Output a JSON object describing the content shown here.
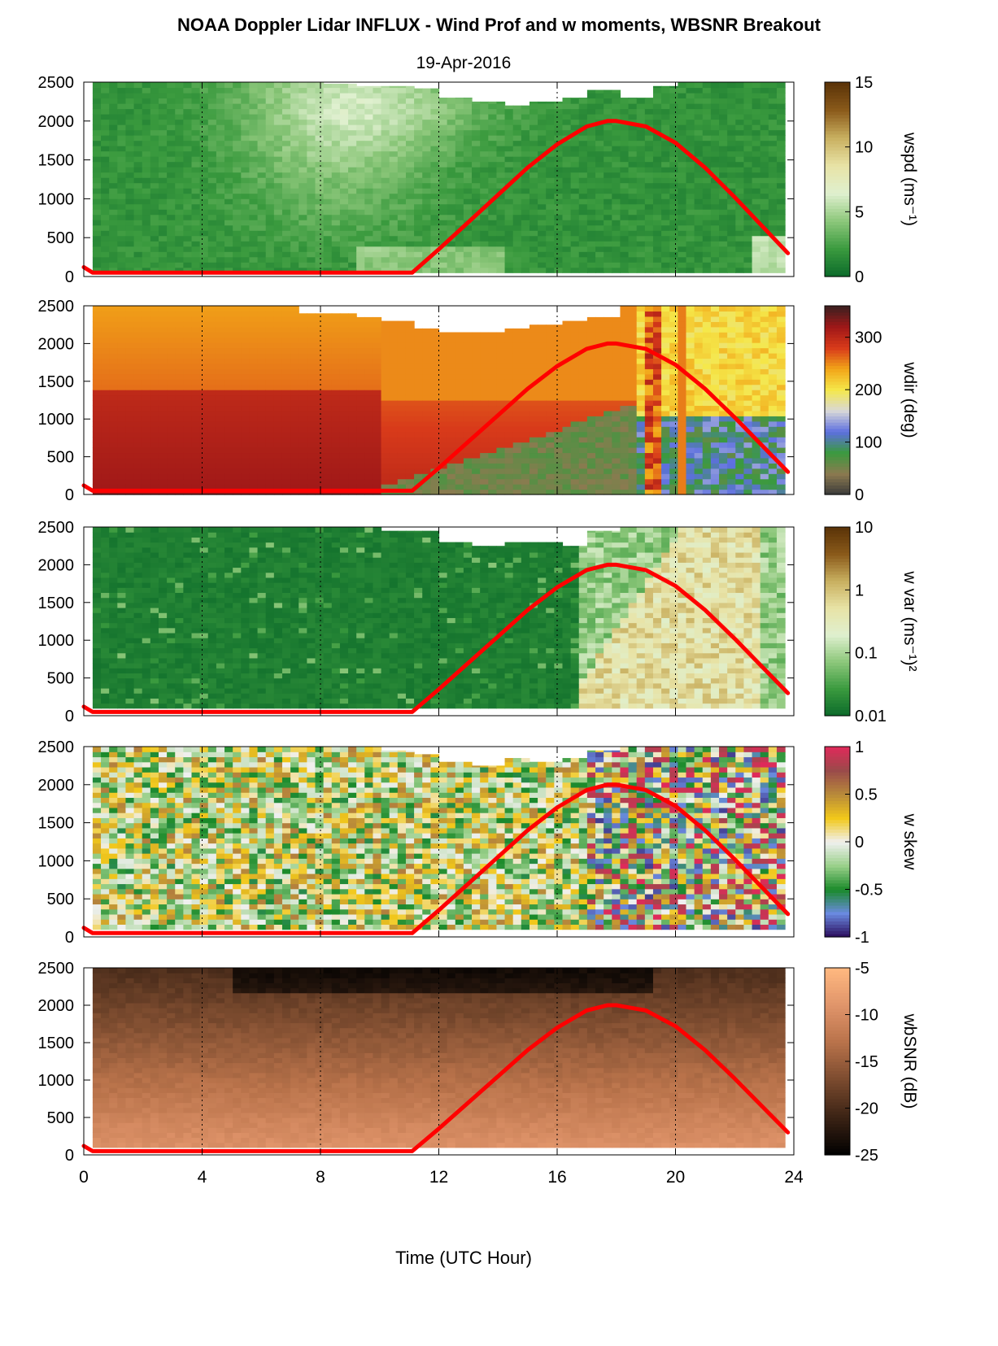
{
  "title": "NOAA Doppler Lidar INFLUX - Wind Prof and w moments, WBSNR Breakout",
  "subtitle": "19-Apr-2016",
  "chart_data": [
    {
      "type": "heatmap",
      "name": "wspd",
      "ylabel": "wspd (ms⁻¹)",
      "ylim": [
        0,
        2500
      ],
      "yticks": [
        "0",
        "500",
        "1000",
        "1500",
        "2000",
        "2500"
      ],
      "xlim": [
        0,
        24
      ],
      "colorbar": {
        "range": [
          0,
          15
        ],
        "ticks": [
          "0",
          "5",
          "10",
          "15"
        ],
        "scale": "linear",
        "colors": [
          "#0b6a2a",
          "#3a9a3e",
          "#8cc77a",
          "#dff0cf",
          "#e8e3a6",
          "#c9b060",
          "#8a5a1a",
          "#5a3308"
        ]
      },
      "data_top_m": [
        2500,
        2500,
        2500,
        2500,
        2500,
        2500,
        2500,
        2500,
        2480,
        2450,
        2450,
        2420,
        2300,
        2250,
        2200,
        2250,
        2300,
        2400,
        2300,
        2450,
        2500,
        2500,
        2500
      ],
      "data_bottom_m": 50
    },
    {
      "type": "heatmap",
      "name": "wdir",
      "ylabel": "wdir (deg)",
      "ylim": [
        0,
        2500
      ],
      "yticks": [
        "0",
        "500",
        "1000",
        "1500",
        "2000",
        "2500"
      ],
      "xlim": [
        0,
        24
      ],
      "colorbar": {
        "range": [
          0,
          360
        ],
        "ticks": [
          "0",
          "100",
          "200",
          "300"
        ],
        "scale": "linear",
        "colors": [
          "#3a3a3a",
          "#8c7a50",
          "#3a9a3e",
          "#5d6fe0",
          "#d8d8d8",
          "#f5e84a",
          "#f2a518",
          "#d83a1a",
          "#a01818",
          "#3a2020"
        ]
      },
      "data_top_m": [
        2500,
        2500,
        2500,
        2500,
        2500,
        2500,
        2500,
        2400,
        2400,
        2350,
        2300,
        2200,
        2150,
        2150,
        2200,
        2250,
        2300,
        2350,
        2500,
        2500,
        2500,
        2500,
        2500
      ],
      "data_bottom_m": 0
    },
    {
      "type": "heatmap",
      "name": "w var",
      "ylabel": "w var (ms⁻¹)²",
      "ylim": [
        0,
        2500
      ],
      "yticks": [
        "0",
        "500",
        "1000",
        "1500",
        "2000",
        "2500"
      ],
      "xlim": [
        0,
        24
      ],
      "colorbar": {
        "range": [
          0.01,
          10
        ],
        "ticks": [
          "0.01",
          "0.1",
          "1",
          "10"
        ],
        "scale": "log",
        "colors": [
          "#0b6a2a",
          "#3a9a3e",
          "#8cc77a",
          "#dff0cf",
          "#e8e3a6",
          "#c9b060",
          "#8a5a1a",
          "#5a3308"
        ]
      },
      "data_top_m": [
        2500,
        2500,
        2500,
        2500,
        2500,
        2500,
        2500,
        2500,
        2500,
        2500,
        2450,
        2450,
        2300,
        2250,
        2300,
        2300,
        2250,
        2450,
        2500,
        2500,
        2500,
        2500,
        2500
      ],
      "data_bottom_m": 100
    },
    {
      "type": "heatmap",
      "name": "w skew",
      "ylabel": "w skew",
      "ylim": [
        0,
        2500
      ],
      "yticks": [
        "0",
        "500",
        "1000",
        "1500",
        "2000",
        "2500"
      ],
      "xlim": [
        0,
        24
      ],
      "colorbar": {
        "range": [
          -1,
          1
        ],
        "ticks": [
          "-1",
          "-0.5",
          "0",
          "0.5",
          "1"
        ],
        "scale": "linear",
        "colors": [
          "#2a0a5a",
          "#6a8ae0",
          "#1a8a2a",
          "#9ad08a",
          "#f0f0f0",
          "#f2c81a",
          "#b88a3a",
          "#9a4a4a",
          "#e02a5a"
        ]
      },
      "data_top_m": [
        2500,
        2500,
        2500,
        2500,
        2500,
        2500,
        2500,
        2500,
        2500,
        2500,
        2450,
        2400,
        2300,
        2250,
        2350,
        2300,
        2350,
        2450,
        2500,
        2500,
        2500,
        2500,
        2500
      ],
      "data_bottom_m": 100
    },
    {
      "type": "heatmap",
      "name": "wbSNR",
      "ylabel": "wbSNR (dB)",
      "ylim": [
        0,
        2500
      ],
      "yticks": [
        "0",
        "500",
        "1000",
        "1500",
        "2000",
        "2500"
      ],
      "xlim": [
        0,
        24
      ],
      "colorbar": {
        "range": [
          -25,
          -5
        ],
        "ticks": [
          "-25",
          "-20",
          "-15",
          "-10",
          "-5"
        ],
        "scale": "linear",
        "colors": [
          "#000000",
          "#3a2214",
          "#7a4a2e",
          "#b8724a",
          "#e0946a",
          "#ffb880"
        ]
      },
      "data_top_m": [
        2500,
        2500,
        2500,
        2500,
        2500,
        2500,
        2500,
        2500,
        2500,
        2500,
        2500,
        2500,
        2500,
        2500,
        2500,
        2500,
        2500,
        2500,
        2500,
        2500,
        2500,
        2500,
        2500
      ],
      "data_bottom_m": 100
    }
  ],
  "overlay_curve": {
    "color": "#ff0000",
    "points": [
      [
        0,
        120
      ],
      [
        0.3,
        50
      ],
      [
        11.1,
        50
      ],
      [
        12,
        350
      ],
      [
        13,
        700
      ],
      [
        14,
        1050
      ],
      [
        15,
        1400
      ],
      [
        16,
        1700
      ],
      [
        17,
        1930
      ],
      [
        17.7,
        2000
      ],
      [
        18,
        2000
      ],
      [
        19,
        1930
      ],
      [
        20,
        1720
      ],
      [
        21,
        1400
      ],
      [
        22,
        1020
      ],
      [
        23,
        620
      ],
      [
        23.8,
        300
      ]
    ]
  },
  "xaxis": {
    "label": "Time (UTC Hour)",
    "ticks": [
      "0",
      "4",
      "8",
      "12",
      "16",
      "20",
      "24"
    ],
    "tick_values": [
      0,
      4,
      8,
      12,
      16,
      20,
      24
    ],
    "grid_dotted": [
      4,
      8,
      12,
      16,
      20
    ]
  }
}
